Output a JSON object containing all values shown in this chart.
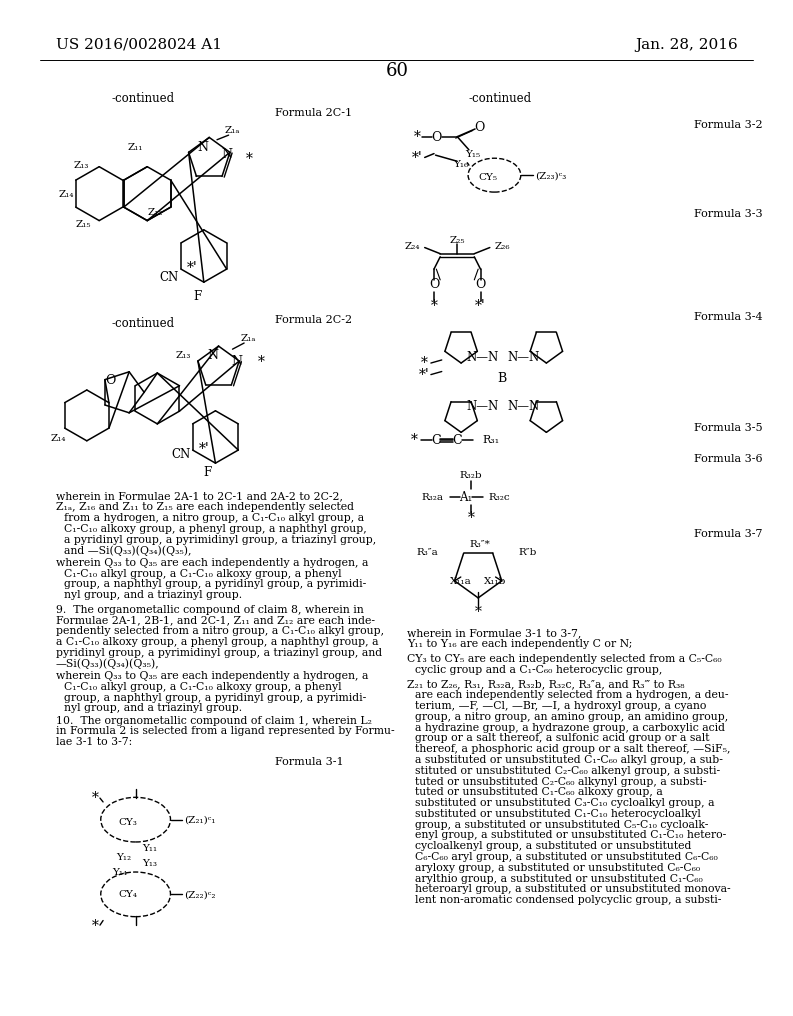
{
  "patent_number": "US 2016/0028024 A1",
  "date": "Jan. 28, 2016",
  "page_number": "60",
  "background_color": "#ffffff",
  "text_color": "#000000"
}
